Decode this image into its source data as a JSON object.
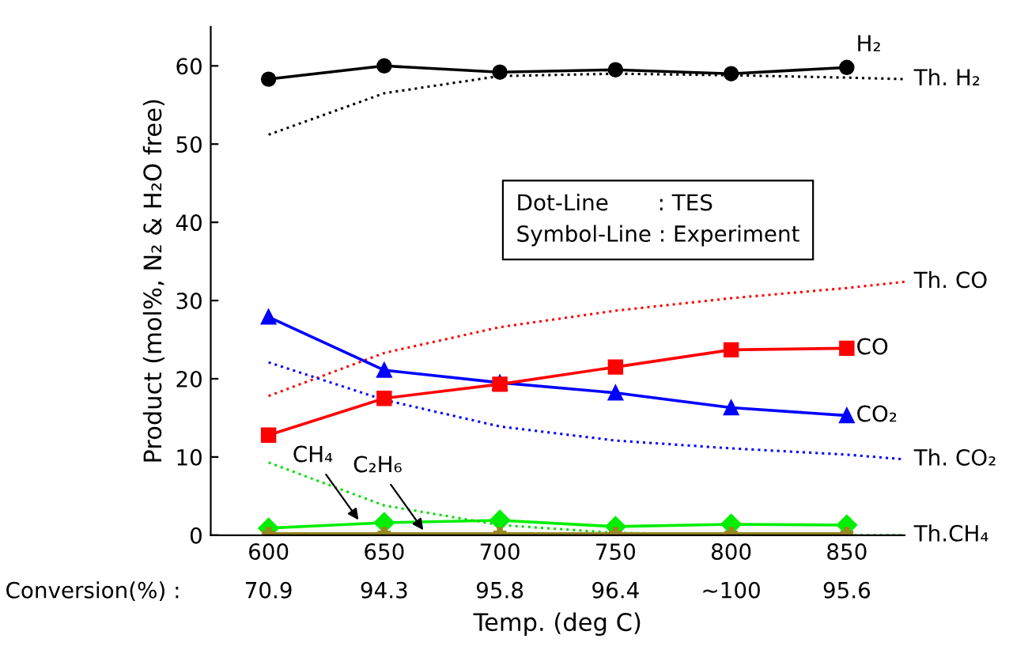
{
  "chart_data": {
    "type": "line",
    "xlabel": "Temp. (deg C)",
    "ylabel": "Product (mol%, N₂ & H₂O free)",
    "xlim": [
      575,
      875
    ],
    "ylim": [
      0,
      65
    ],
    "xticks": [
      600,
      650,
      700,
      750,
      800,
      850
    ],
    "yticks": [
      0,
      10,
      20,
      30,
      40,
      50,
      60
    ],
    "grid": false,
    "annotations": [
      "Dot-Line       : TES",
      "Symbol-Line : Experiment",
      "Conversion(%) :",
      "70.9",
      "94.3",
      "95.8",
      "96.4",
      "~100",
      "95.6",
      {
        "text": "CH₄",
        "x": 640,
        "y": 1.5
      },
      {
        "text": "C₂H₆",
        "x": 668,
        "y": 0.2
      }
    ],
    "series": [
      {
        "name": "H₂",
        "color": "#000000",
        "marker": "circle",
        "line_style": "solid",
        "x": [
          600,
          650,
          700,
          750,
          800,
          850
        ],
        "values": [
          58.3,
          60.0,
          59.2,
          59.5,
          59.0,
          59.8
        ]
      },
      {
        "name": "Th. H₂",
        "color": "#000000",
        "marker": "none",
        "line_style": "dotted",
        "x": [
          600,
          650,
          700,
          750,
          800,
          850,
          875
        ],
        "values": [
          51.2,
          56.5,
          58.7,
          59.0,
          58.8,
          58.5,
          58.3
        ]
      },
      {
        "name": "CO",
        "color": "#ff0000",
        "marker": "square",
        "line_style": "solid",
        "x": [
          600,
          650,
          700,
          750,
          800,
          850
        ],
        "values": [
          12.8,
          17.5,
          19.3,
          21.5,
          23.7,
          23.9
        ]
      },
      {
        "name": "Th. CO",
        "color": "#ff0000",
        "marker": "none",
        "line_style": "dotted",
        "x": [
          600,
          650,
          700,
          750,
          800,
          850,
          875
        ],
        "values": [
          17.8,
          23.3,
          26.6,
          28.7,
          30.3,
          31.6,
          32.4
        ]
      },
      {
        "name": "CO₂",
        "color": "#0000ff",
        "marker": "triangle",
        "line_style": "solid",
        "x": [
          600,
          650,
          700,
          750,
          800,
          850
        ],
        "values": [
          27.9,
          21.1,
          19.5,
          18.2,
          16.3,
          15.3
        ]
      },
      {
        "name": "Th. CO₂",
        "color": "#0000ff",
        "marker": "none",
        "line_style": "dotted",
        "x": [
          600,
          650,
          700,
          750,
          800,
          850,
          875
        ],
        "values": [
          22.1,
          17.3,
          13.9,
          12.1,
          11.1,
          10.3,
          9.7
        ]
      },
      {
        "color": "#00ee00",
        "marker": "diamond",
        "line_style": "solid",
        "x": [
          600,
          650,
          700,
          750,
          800,
          850
        ],
        "values": [
          0.9,
          1.6,
          1.9,
          1.1,
          1.4,
          1.3
        ]
      },
      {
        "name": "Th.CH₄",
        "color": "#00dd00",
        "marker": "none",
        "line_style": "dotted",
        "x": [
          600,
          650,
          700,
          750,
          800,
          850,
          875
        ],
        "values": [
          9.3,
          3.8,
          1.3,
          0.3,
          0.1,
          0.0,
          0.0
        ]
      },
      {
        "color": "#998822",
        "marker": "cross",
        "line_style": "solid",
        "x": [
          600,
          650,
          700,
          750,
          800,
          850
        ],
        "values": [
          0.2,
          0.2,
          0.2,
          0.2,
          0.2,
          0.2
        ]
      }
    ]
  }
}
